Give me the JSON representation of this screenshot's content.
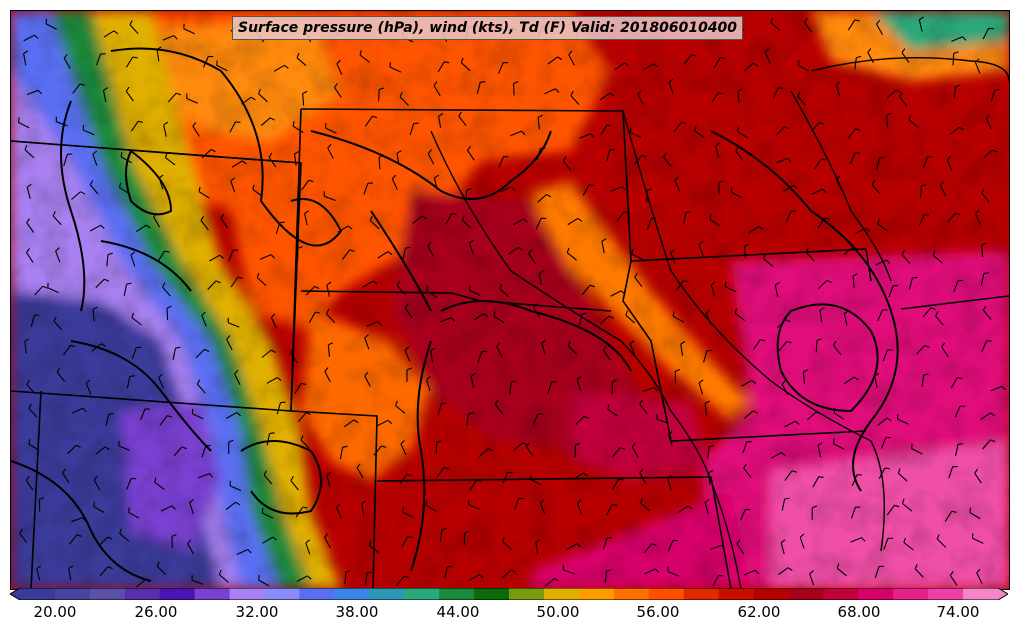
{
  "title": "Surface pressure (hPa), wind (kts), Td (F) Valid: 201806010400",
  "colorbar": {
    "tick_labels": [
      "20.00",
      "26.00",
      "32.00",
      "38.00",
      "44.00",
      "50.00",
      "56.00",
      "62.00",
      "68.00",
      "74.00"
    ],
    "colors": [
      "#3a3a9a",
      "#46469e",
      "#5a50a6",
      "#5a2ea8",
      "#4a14b4",
      "#7a40d2",
      "#a880f0",
      "#8a8af8",
      "#5a6ef2",
      "#3a86e8",
      "#2a98b4",
      "#2aa87a",
      "#1a8a3a",
      "#0a6a0a",
      "#7a9a10",
      "#e0b000",
      "#ff9a00",
      "#ff7000",
      "#ff5000",
      "#e02a00",
      "#c80e00",
      "#b80000",
      "#a8001a",
      "#c2003a",
      "#d8006a",
      "#e8208a",
      "#f040a8",
      "#f884c8"
    ]
  }
}
